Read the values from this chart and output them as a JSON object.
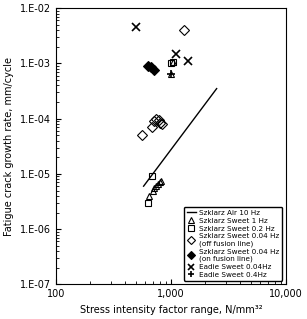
{
  "title": "",
  "xlabel": "Stress intensity factor range, N/mm³²",
  "ylabel": "Fatigue crack growth rate, mm/cycle",
  "xlim": [
    100,
    10000
  ],
  "ylim": [
    1e-07,
    0.01
  ],
  "line_air": {
    "x": [
      580,
      2500
    ],
    "y": [
      6e-06,
      0.00035
    ],
    "color": "black",
    "lw": 1.0
  },
  "szklarz_sweet_1hz": {
    "x": [
      650,
      700,
      720,
      750,
      780,
      800,
      820
    ],
    "y": [
      4e-06,
      5e-06,
      5.5e-06,
      6e-06,
      6.5e-06,
      7e-06,
      7.5e-06
    ],
    "marker": "^",
    "color": "black",
    "facecolor": "none",
    "ms": 5
  },
  "szklarz_sweet_0p2hz_low": {
    "x": [
      630,
      680
    ],
    "y": [
      3e-06,
      9e-06
    ],
    "marker": "s",
    "color": "black",
    "facecolor": "none",
    "ms": 5
  },
  "szklarz_sweet_0p2hz_high": {
    "x": [
      1000,
      1050
    ],
    "y": [
      0.001,
      0.00105
    ],
    "marker": "s",
    "color": "black",
    "facecolor": "none",
    "ms": 5
  },
  "szklarz_sweet_0p04hz_off": {
    "x": [
      560,
      680,
      720,
      750,
      790,
      810,
      840
    ],
    "y": [
      5e-05,
      7e-05,
      9e-05,
      0.0001,
      9.5e-05,
      8.5e-05,
      8e-05
    ],
    "marker": "D",
    "color": "black",
    "facecolor": "none",
    "ms": 5
  },
  "szklarz_sweet_0p04hz_off_high": {
    "x": [
      1300
    ],
    "y": [
      0.004
    ],
    "marker": "D",
    "color": "black",
    "facecolor": "none",
    "ms": 5
  },
  "szklarz_sweet_0p04hz_on": {
    "x": [
      630,
      670,
      710
    ],
    "y": [
      0.0009,
      0.00085,
      0.00075
    ],
    "marker": "D",
    "color": "black",
    "facecolor": "black",
    "ms": 5
  },
  "eadie_sweet_0p04hz": {
    "x": [
      500,
      1100,
      1400
    ],
    "y": [
      0.0045,
      0.0015,
      0.0011
    ],
    "marker": "x",
    "color": "black",
    "facecolor": "black",
    "ms": 6,
    "mew": 1.2
  },
  "eadie_sweet_0p4hz": {
    "x": [
      1000
    ],
    "y": [
      0.00065
    ],
    "marker": "+",
    "color": "black",
    "facecolor": "black",
    "ms": 6,
    "mew": 1.2
  },
  "szklarz_sweet_1hz_high": {
    "x": [
      1000,
      1050
    ],
    "y": [
      0.00065,
      0.00105
    ],
    "marker": "^",
    "color": "black",
    "facecolor": "none",
    "ms": 5
  },
  "legend_labels": [
    "Szklarz Air 10 Hz",
    "Szklarz Sweet 1 Hz",
    "Szklarz Sweet 0.2 Hz",
    "Szklarz Sweet 0.04 Hz\n(off fusion line)",
    "Szklarz Sweet 0.04 Hz\n(on fusion line)",
    "Eadie Sweet 0.04Hz",
    "Eadie Sweet 0.4Hz"
  ]
}
